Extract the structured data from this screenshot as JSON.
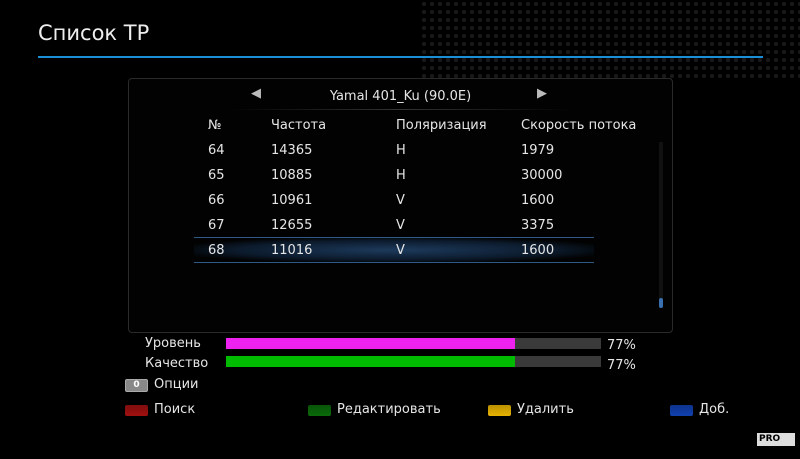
{
  "header": {
    "title": "Список ТР"
  },
  "satellite": {
    "name": "Yamal 401_Ku (90.0E)",
    "prev_icon": "triangle-left",
    "next_icon": "triangle-right"
  },
  "table": {
    "columns": [
      "№",
      "Частота",
      "Поляризация",
      "Скорость потока"
    ],
    "rows": [
      [
        "64",
        "14365",
        "H",
        "1979"
      ],
      [
        "65",
        "10885",
        "H",
        "30000"
      ],
      [
        "66",
        "10961",
        "V",
        "1600"
      ],
      [
        "67",
        "12655",
        "V",
        "3375"
      ],
      [
        "68",
        "11016",
        "V",
        "1600"
      ]
    ],
    "selected_index": 4
  },
  "signal": {
    "level_label": "Уровень",
    "level_value": "77%",
    "level_fraction": 0.77,
    "level_color": "#ee22ee",
    "quality_label": "Качество",
    "quality_value": "77%",
    "quality_fraction": 0.77,
    "quality_color": "#00bb00"
  },
  "options": {
    "key": "0",
    "label": "Опции"
  },
  "keys": [
    {
      "label": "Поиск",
      "color": "#a01010"
    },
    {
      "label": "Редактировать",
      "color": "#0a6a0a"
    },
    {
      "label": "Удалить",
      "color": "#e8b400"
    },
    {
      "label": "Доб.",
      "color": "#1040b0"
    }
  ],
  "watermark": "PRO TV"
}
